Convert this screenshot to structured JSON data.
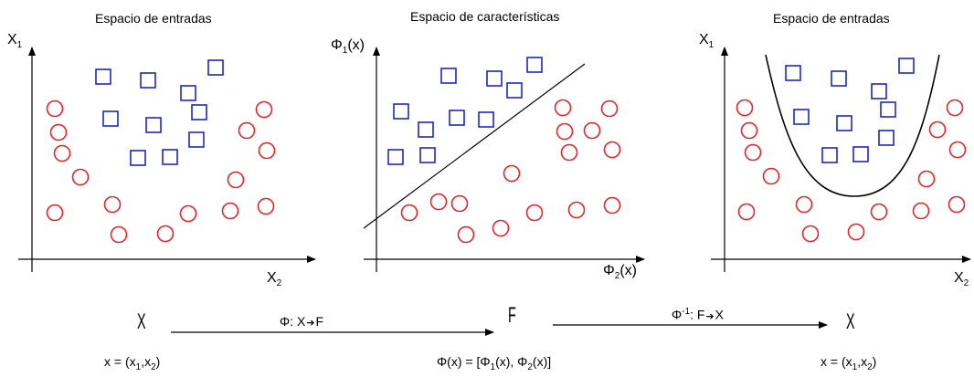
{
  "colors": {
    "circle": "#e8232a",
    "square": "#1c27c5",
    "line": "#000000"
  },
  "panels": [
    {
      "title": "Espacio de entradas",
      "y_axis": {
        "main": "X",
        "sub": "1"
      },
      "x_axis": {
        "main": "X",
        "sub": "2"
      }
    },
    {
      "title": "Espacio de características",
      "y_axis": {
        "main": "Φ",
        "sub": "1",
        "tail": "(x)"
      },
      "x_axis": {
        "main": "Φ",
        "sub": "2",
        "tail": "(x)"
      }
    },
    {
      "title": "Espacio de entradas",
      "y_axis": {
        "main": "X",
        "sub": "1"
      },
      "x_axis": {
        "main": "X",
        "sub": "2"
      }
    }
  ],
  "mapping": {
    "left_set": "X",
    "middle_set": "F",
    "right_set": "X",
    "forward": {
      "main": "Φ: X",
      "arrow": "➔",
      "target": "F"
    },
    "inverse": {
      "main": "Φ",
      "sup": "-1",
      "rest": ": F",
      "arrow": "➔",
      "target": "X"
    },
    "left_vector": {
      "pre": "x = (x",
      "s1": "1",
      "mid": ",x",
      "s2": "2",
      "post": ")"
    },
    "middle_vector": {
      "pre": "Φ(x) = [Φ",
      "s1": "1",
      "mid": "(x), Φ",
      "s2": "2",
      "post": "(x)]"
    },
    "right_vector": {
      "pre": "x = (x",
      "s1": "1",
      "mid": ",x",
      "s2": "2",
      "post": ")"
    }
  }
}
